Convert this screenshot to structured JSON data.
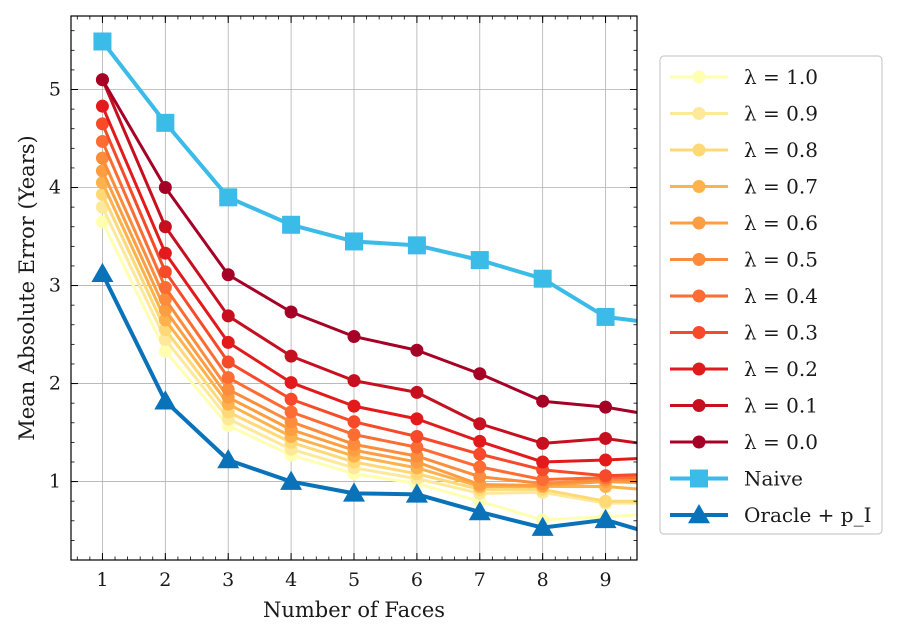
{
  "chart_data": {
    "type": "line",
    "xlabel": "Number of Faces",
    "ylabel": "Mean Absolute Error (Years)",
    "xlim": [
      0.5,
      9.5
    ],
    "ylim": [
      0.2,
      5.75
    ],
    "xticks": [
      1,
      2,
      3,
      4,
      5,
      6,
      7,
      8,
      9
    ],
    "yticks": [
      1,
      2,
      3,
      4,
      5
    ],
    "grid": true,
    "legend_position": "right-outside",
    "x": [
      1,
      2,
      3,
      4,
      5,
      6,
      7,
      8,
      9,
      10
    ],
    "series": [
      {
        "name": "λ = 1.0",
        "color": "#ffffb2",
        "marker": "circle",
        "values": [
          3.65,
          2.33,
          1.57,
          1.27,
          1.08,
          0.98,
          0.8,
          0.61,
          0.64,
          0.68
        ]
      },
      {
        "name": "λ = 0.9",
        "color": "#fee99a",
        "marker": "circle",
        "values": [
          3.8,
          2.45,
          1.64,
          1.33,
          1.14,
          1.03,
          0.88,
          0.89,
          0.78,
          0.78
        ]
      },
      {
        "name": "λ = 0.8",
        "color": "#fed976",
        "marker": "circle",
        "values": [
          3.93,
          2.55,
          1.71,
          1.4,
          1.2,
          1.08,
          0.92,
          0.92,
          0.8,
          0.8
        ]
      },
      {
        "name": "λ = 0.7",
        "color": "#feb24c",
        "marker": "circle",
        "values": [
          4.05,
          2.65,
          1.79,
          1.46,
          1.26,
          1.14,
          0.95,
          0.95,
          0.95,
          0.9
        ]
      },
      {
        "name": "λ = 0.6",
        "color": "#fd9e43",
        "marker": "circle",
        "values": [
          4.17,
          2.75,
          1.86,
          1.53,
          1.32,
          1.2,
          0.97,
          0.96,
          1.0,
          0.98
        ]
      },
      {
        "name": "λ = 0.5",
        "color": "#fd8d3c",
        "marker": "circle",
        "values": [
          4.3,
          2.86,
          1.94,
          1.61,
          1.38,
          1.26,
          1.05,
          0.98,
          1.02,
          1.02
        ]
      },
      {
        "name": "λ = 0.4",
        "color": "#fc6c33",
        "marker": "circle",
        "values": [
          4.47,
          2.98,
          2.06,
          1.71,
          1.48,
          1.35,
          1.15,
          1.02,
          1.04,
          1.04
        ]
      },
      {
        "name": "λ = 0.3",
        "color": "#f64a2b",
        "marker": "circle",
        "values": [
          4.65,
          3.14,
          2.22,
          1.84,
          1.61,
          1.46,
          1.28,
          1.12,
          1.06,
          1.08
        ]
      },
      {
        "name": "λ = 0.2",
        "color": "#e31a1c",
        "marker": "circle",
        "values": [
          4.83,
          3.33,
          2.42,
          2.01,
          1.77,
          1.64,
          1.41,
          1.2,
          1.22,
          1.25
        ]
      },
      {
        "name": "λ = 0.1",
        "color": "#c7101f",
        "marker": "circle",
        "values": [
          5.1,
          3.6,
          2.69,
          2.28,
          2.03,
          1.91,
          1.59,
          1.39,
          1.44,
          1.35
        ]
      },
      {
        "name": "λ = 0.0",
        "color": "#a50026",
        "marker": "circle",
        "values": [
          5.1,
          4.0,
          3.11,
          2.73,
          2.48,
          2.34,
          2.1,
          1.82,
          1.76,
          1.65
        ]
      },
      {
        "name": "Naive",
        "color": "#3bbbe8",
        "marker": "square",
        "values": [
          5.49,
          4.66,
          3.9,
          3.62,
          3.45,
          3.41,
          3.26,
          3.07,
          2.68,
          2.6
        ]
      },
      {
        "name": "Oracle + p_I",
        "color": "#0a72b8",
        "marker": "triangle",
        "values": [
          3.12,
          1.82,
          1.22,
          1.0,
          0.88,
          0.87,
          0.69,
          0.53,
          0.61,
          0.42
        ]
      }
    ]
  }
}
